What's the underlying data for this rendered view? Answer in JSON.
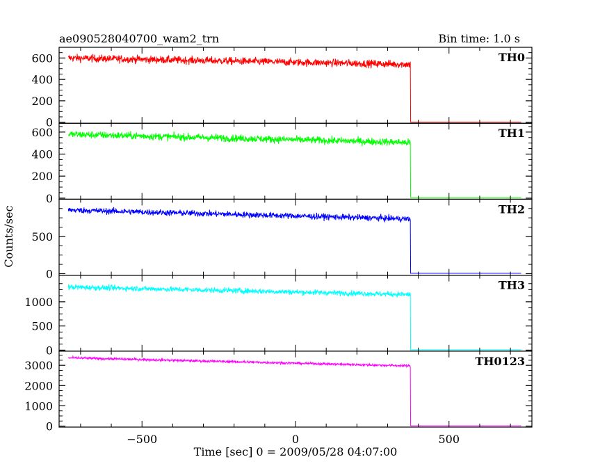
{
  "header": {
    "title": "ae090528040700_wam2_trn",
    "bin_time": "Bin time: 1.0 s"
  },
  "chart_data": {
    "type": "line",
    "title": "ae090528040700_wam2_trn",
    "xlabel": "Time [sec] 0 = 2009/05/28 04:07:00",
    "ylabel": "Counts/sec",
    "xlim": [
      -770,
      770
    ],
    "xticks": [
      -500,
      0,
      500
    ],
    "x_step_sec": 1.0,
    "series": [
      {
        "name": "TH0",
        "color": "#ff0000",
        "ylim": [
          -10,
          700
        ],
        "yticks": [
          0,
          200,
          400,
          600
        ],
        "start_x": -740,
        "start_level": 600,
        "drop_x": 375,
        "end_level": 540,
        "noise": 35,
        "after_level": 0,
        "end_x": 735
      },
      {
        "name": "TH1",
        "color": "#00ff00",
        "ylim": [
          -10,
          680
        ],
        "yticks": [
          0,
          200,
          400,
          600
        ],
        "start_x": -740,
        "start_level": 580,
        "drop_x": 375,
        "end_level": 505,
        "noise": 33,
        "after_level": 5,
        "end_x": 735
      },
      {
        "name": "TH2",
        "color": "#0000ff",
        "ylim": [
          -20,
          1000
        ],
        "yticks": [
          0,
          500
        ],
        "start_x": -740,
        "start_level": 855,
        "drop_x": 375,
        "end_level": 735,
        "noise": 40,
        "after_level": 5,
        "end_x": 735
      },
      {
        "name": "TH3",
        "color": "#00ffff",
        "ylim": [
          -20,
          1550
        ],
        "yticks": [
          0,
          500,
          1000
        ],
        "start_x": -740,
        "start_level": 1305,
        "drop_x": 375,
        "end_level": 1150,
        "noise": 55,
        "after_level": 5,
        "end_x": 735
      },
      {
        "name": "TH0123",
        "color": "#ff00ff",
        "ylim": [
          -50,
          3700
        ],
        "yticks": [
          0,
          1000,
          2000,
          3000
        ],
        "start_x": -740,
        "start_level": 3370,
        "drop_x": 375,
        "end_level": 2970,
        "noise": 60,
        "after_level": 15,
        "end_x": 735
      }
    ]
  }
}
